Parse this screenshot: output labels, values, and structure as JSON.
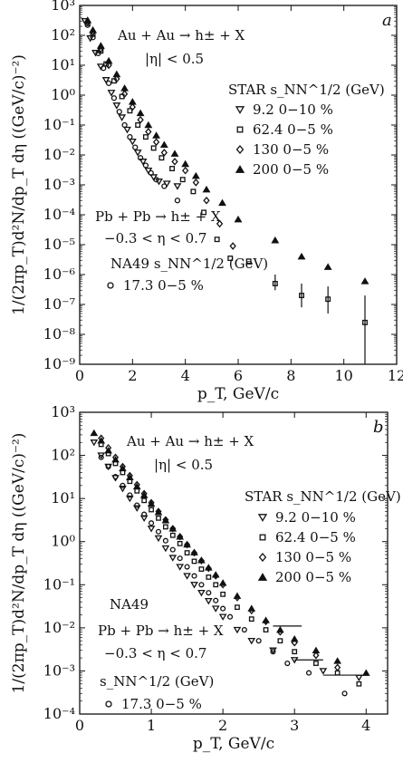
{
  "chart_data": [
    {
      "panel": "a",
      "type": "scatter",
      "xlabel": "p_T, GeV/c",
      "ylabel": "1/(2πp_T)d²N/dp_T dη ((GeV/c)⁻²)",
      "xlim": [
        0,
        12
      ],
      "ylim_log10": [
        -9,
        3
      ],
      "xticks": [
        "0",
        "2",
        "4",
        "6",
        "8",
        "10",
        "12"
      ],
      "yticks": [
        "10³",
        "10²",
        "10¹",
        "10⁰",
        "10⁻¹",
        "10⁻²",
        "10⁻³",
        "10⁻⁴",
        "10⁻⁵",
        "10⁻⁶",
        "10⁻⁷",
        "10⁻⁸",
        "10⁻⁹"
      ],
      "texts": {
        "reaction1": "Au + Au → h± + X",
        "cut1": "|η| < 0.5",
        "legend1_header": "STAR  s_NN^1/2 (GeV)",
        "reaction2": "Pb + Pb → h± + X",
        "cut2": "−0.3 < η < 0.7",
        "legend2_header": "NA49 s_NN^1/2 (GeV)"
      },
      "series": [
        {
          "name": "9.2  0−10 %",
          "marker": "triangle-down",
          "x": [
            0.2,
            0.4,
            0.6,
            0.8,
            1.0,
            1.2,
            1.4,
            1.6,
            1.8,
            2.0,
            2.2,
            2.4,
            2.6,
            2.8,
            3.0,
            3.3,
            3.7
          ],
          "y": [
            300,
            80,
            26,
            9,
            3.2,
            1.2,
            0.45,
            0.18,
            0.07,
            0.028,
            0.012,
            0.006,
            0.003,
            0.0018,
            0.0013,
            0.0011,
            0.0009
          ]
        },
        {
          "name": "62.4  0−5 %",
          "marker": "square",
          "x": [
            0.3,
            0.5,
            0.8,
            1.0,
            1.3,
            1.6,
            1.9,
            2.2,
            2.5,
            2.8,
            3.1,
            3.5,
            3.9,
            4.3,
            4.7,
            5.2,
            5.7,
            6.4,
            7.4,
            8.4,
            9.4,
            10.8
          ],
          "y": [
            250,
            110,
            30,
            11,
            3,
            0.9,
            0.3,
            0.1,
            0.04,
            0.017,
            0.008,
            0.0035,
            0.0015,
            0.0006,
            0.00012,
            1.5e-05,
            3.5e-06,
            2.8e-06,
            5e-07,
            2e-07,
            1.5e-07,
            2.5e-08
          ]
        },
        {
          "name": "130  0−5 %",
          "marker": "diamond",
          "x": [
            0.3,
            0.5,
            0.8,
            1.1,
            1.4,
            1.7,
            2.0,
            2.3,
            2.6,
            2.9,
            3.2,
            3.6,
            4.0,
            4.4,
            4.8,
            5.3,
            5.8
          ],
          "y": [
            280,
            130,
            35,
            10,
            3.5,
            1.1,
            0.4,
            0.15,
            0.06,
            0.027,
            0.012,
            0.006,
            0.003,
            0.0012,
            0.0003,
            5e-05,
            9e-06
          ]
        },
        {
          "name": "200  0−5 %",
          "marker": "triangle-up",
          "x": [
            0.3,
            0.5,
            0.8,
            1.1,
            1.4,
            1.7,
            2.0,
            2.3,
            2.6,
            2.9,
            3.2,
            3.6,
            4.0,
            4.4,
            4.8,
            5.4,
            6.0,
            7.4,
            8.4,
            9.4,
            10.8
          ],
          "y": [
            320,
            150,
            45,
            14,
            5,
            1.7,
            0.6,
            0.25,
            0.1,
            0.045,
            0.022,
            0.011,
            0.005,
            0.002,
            0.0007,
            0.00025,
            7e-05,
            1.4e-05,
            4e-06,
            1.8e-06,
            6e-07
          ]
        },
        {
          "name": "17.3  0−5 %",
          "marker": "circle",
          "x": [
            0.3,
            0.5,
            0.7,
            0.9,
            1.1,
            1.3,
            1.5,
            1.7,
            1.9,
            2.1,
            2.3,
            2.5,
            2.7,
            2.9,
            3.2,
            3.7
          ],
          "y": [
            220,
            85,
            25,
            8,
            2.5,
            0.8,
            0.28,
            0.1,
            0.04,
            0.018,
            0.008,
            0.0045,
            0.0025,
            0.0015,
            0.0009,
            0.0003
          ]
        }
      ]
    },
    {
      "panel": "b",
      "type": "scatter",
      "xlabel": "p_T, GeV/c",
      "ylabel": "1/(2πp_T)d²N/dp_T dη ((GeV/c)⁻²)",
      "xlim": [
        0,
        4.3
      ],
      "ylim_log10": [
        -4,
        3
      ],
      "xticks": [
        "0",
        "1",
        "2",
        "3",
        "4"
      ],
      "yticks": [
        "10³",
        "10²",
        "10¹",
        "10⁰",
        "10⁻¹",
        "10⁻²",
        "10⁻³",
        "10⁻⁴"
      ],
      "texts": {
        "reaction1": "Au + Au → h± + X",
        "cut1": "|η| < 0.5",
        "legend1_header": "STAR  s_NN^1/2 (GeV)",
        "na49": "NA49",
        "reaction2": "Pb + Pb → h± + X",
        "cut2": "−0.3 < η < 0.7",
        "legend2_header": "s_NN^1/2 (GeV)"
      },
      "series": [
        {
          "name": "9.2  0−10 %",
          "marker": "triangle-down",
          "x": [
            0.2,
            0.3,
            0.4,
            0.5,
            0.6,
            0.7,
            0.8,
            0.9,
            1.0,
            1.1,
            1.2,
            1.3,
            1.4,
            1.5,
            1.6,
            1.7,
            1.8,
            1.9,
            2.0,
            2.2,
            2.4,
            2.7,
            3.0,
            3.4,
            3.9
          ],
          "y": [
            200,
            100,
            55,
            30,
            17,
            10,
            6,
            3.5,
            2,
            1.2,
            0.7,
            0.42,
            0.26,
            0.16,
            0.1,
            0.065,
            0.042,
            0.028,
            0.018,
            0.009,
            0.005,
            0.003,
            0.0018,
            0.001,
            0.0007
          ]
        },
        {
          "name": "62.4  0−5 %",
          "marker": "square",
          "x": [
            0.3,
            0.4,
            0.5,
            0.6,
            0.7,
            0.8,
            0.9,
            1.0,
            1.1,
            1.2,
            1.3,
            1.4,
            1.5,
            1.6,
            1.7,
            1.8,
            1.9,
            2.0,
            2.2,
            2.4,
            2.6,
            2.8,
            3.0,
            3.3,
            3.6,
            3.9
          ],
          "y": [
            180,
            110,
            65,
            40,
            25,
            15,
            9,
            5.5,
            3.5,
            2.2,
            1.4,
            0.9,
            0.55,
            0.35,
            0.23,
            0.15,
            0.1,
            0.06,
            0.03,
            0.016,
            0.009,
            0.005,
            0.0028,
            0.0015,
            0.0009,
            0.0005
          ]
        },
        {
          "name": "130  0−5 %",
          "marker": "diamond",
          "x": [
            0.3,
            0.4,
            0.5,
            0.6,
            0.7,
            0.8,
            0.9,
            1.0,
            1.1,
            1.2,
            1.3,
            1.4,
            1.5,
            1.6,
            1.7,
            1.8,
            1.9,
            2.0,
            2.2,
            2.4,
            2.6,
            2.8,
            3.0,
            3.3,
            3.6
          ],
          "y": [
            250,
            150,
            90,
            55,
            34,
            21,
            13,
            8,
            5,
            3.2,
            2,
            1.3,
            0.85,
            0.55,
            0.36,
            0.24,
            0.16,
            0.1,
            0.05,
            0.025,
            0.014,
            0.008,
            0.0045,
            0.0023,
            0.0012
          ]
        },
        {
          "name": "200  0−5 %",
          "marker": "triangle-up",
          "x": [
            0.2,
            0.3,
            0.4,
            0.5,
            0.6,
            0.7,
            0.8,
            0.9,
            1.0,
            1.1,
            1.2,
            1.3,
            1.4,
            1.5,
            1.6,
            1.7,
            1.8,
            1.9,
            2.0,
            2.2,
            2.4,
            2.6,
            2.8,
            3.0,
            3.3,
            3.6,
            4.0
          ],
          "y": [
            330,
            220,
            130,
            80,
            50,
            31,
            19,
            12,
            7.5,
            4.8,
            3.1,
            2,
            1.3,
            0.85,
            0.56,
            0.37,
            0.25,
            0.17,
            0.11,
            0.055,
            0.028,
            0.015,
            0.009,
            0.0055,
            0.003,
            0.0017,
            0.0009
          ]
        },
        {
          "name": "17.3  0−5 %",
          "marker": "circle",
          "x": [
            0.3,
            0.4,
            0.5,
            0.6,
            0.7,
            0.8,
            0.9,
            1.0,
            1.1,
            1.2,
            1.3,
            1.4,
            1.5,
            1.6,
            1.7,
            1.8,
            1.9,
            2.0,
            2.1,
            2.3,
            2.5,
            2.7,
            2.9,
            3.2,
            3.7
          ],
          "y": [
            90,
            55,
            32,
            20,
            12,
            7,
            4.3,
            2.7,
            1.7,
            1.05,
            0.65,
            0.41,
            0.26,
            0.16,
            0.1,
            0.065,
            0.043,
            0.028,
            0.018,
            0.009,
            0.005,
            0.0028,
            0.0015,
            0.0009,
            0.0003
          ]
        }
      ]
    }
  ]
}
